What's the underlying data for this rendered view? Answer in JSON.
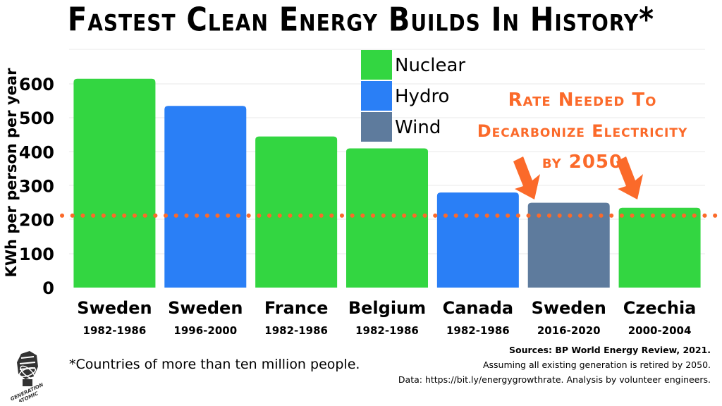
{
  "page": {
    "title": "Fastest Clean Energy Builds In History*",
    "footnote": "*Countries of more than ten million people.",
    "sources": [
      "Sources: BP World Energy Review, 2021.",
      "Assuming all existing generation is retired by 2050.",
      "Data: https://bit.ly/energygrowthrate. Analysis by volunteer engineers."
    ],
    "logo_text": "GENERATION ATOMIC"
  },
  "colors": {
    "Nuclear": "#33d641",
    "Hydro": "#2a7ff6",
    "Wind": "#5e7b9d",
    "target": "#fb6a2a",
    "grid": "#e8e8e8"
  },
  "chart_data": {
    "type": "bar",
    "title": "Fastest Clean Energy Builds In History*",
    "ylabel": "KWh per person per year",
    "xlabel": "",
    "ylim": [
      0,
      650
    ],
    "yticks": [
      0,
      100,
      200,
      300,
      400,
      500,
      600
    ],
    "grid": true,
    "legend_position": "top-center",
    "legend": [
      "Nuclear",
      "Hydro",
      "Wind"
    ],
    "categories": [
      "Sweden",
      "Sweden",
      "France",
      "Belgium",
      "Canada",
      "Sweden",
      "Czechia"
    ],
    "periods": [
      "1982-1986",
      "1996-2000",
      "1982-1986",
      "1982-1986",
      "1982-1986",
      "2016-2020",
      "2000-2004"
    ],
    "values": [
      615,
      535,
      445,
      410,
      280,
      250,
      235
    ],
    "bar_types": [
      "Nuclear",
      "Hydro",
      "Nuclear",
      "Nuclear",
      "Hydro",
      "Wind",
      "Nuclear"
    ],
    "target_line": {
      "value": 212,
      "label_lines": [
        "Rate Needed To",
        "Decarbonize Electricity",
        "by 2050"
      ]
    }
  }
}
